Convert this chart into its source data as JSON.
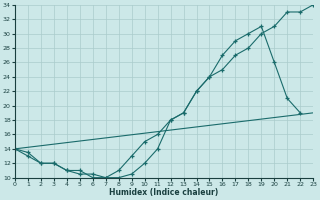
{
  "xlabel": "Humidex (Indice chaleur)",
  "bg_color": "#cce8e8",
  "grid_color": "#aacccc",
  "line_color": "#1a6b6b",
  "curve1_x": [
    0,
    1,
    2,
    3,
    4,
    5,
    6,
    7,
    8,
    9,
    10,
    11,
    12,
    13,
    14,
    15,
    16,
    17,
    18,
    19,
    20,
    21,
    22,
    23
  ],
  "curve1_y": [
    14,
    13.5,
    12,
    12,
    11,
    11,
    10,
    10,
    11,
    13,
    15,
    16,
    18,
    19,
    22,
    24,
    25,
    27,
    28,
    30,
    31,
    33,
    33,
    34
  ],
  "curve2_x": [
    0,
    1,
    2,
    3,
    4,
    5,
    6,
    7,
    8,
    9,
    10,
    11,
    12,
    13,
    14,
    15,
    16,
    17,
    18,
    19,
    20,
    21,
    22
  ],
  "curve2_y": [
    14,
    13,
    12,
    12,
    11,
    10.5,
    10.5,
    10,
    10,
    10.5,
    12,
    14,
    18,
    19,
    22,
    24,
    27,
    29,
    30,
    31,
    26,
    21,
    19
  ],
  "curve3_x": [
    0,
    23
  ],
  "curve3_y": [
    14,
    19
  ],
  "ylim": [
    10,
    34
  ],
  "xlim": [
    0,
    23
  ],
  "yticks": [
    10,
    12,
    14,
    16,
    18,
    20,
    22,
    24,
    26,
    28,
    30,
    32,
    34
  ],
  "xticks": [
    0,
    1,
    2,
    3,
    4,
    5,
    6,
    7,
    8,
    9,
    10,
    11,
    12,
    13,
    14,
    15,
    16,
    17,
    18,
    19,
    20,
    21,
    22,
    23
  ]
}
